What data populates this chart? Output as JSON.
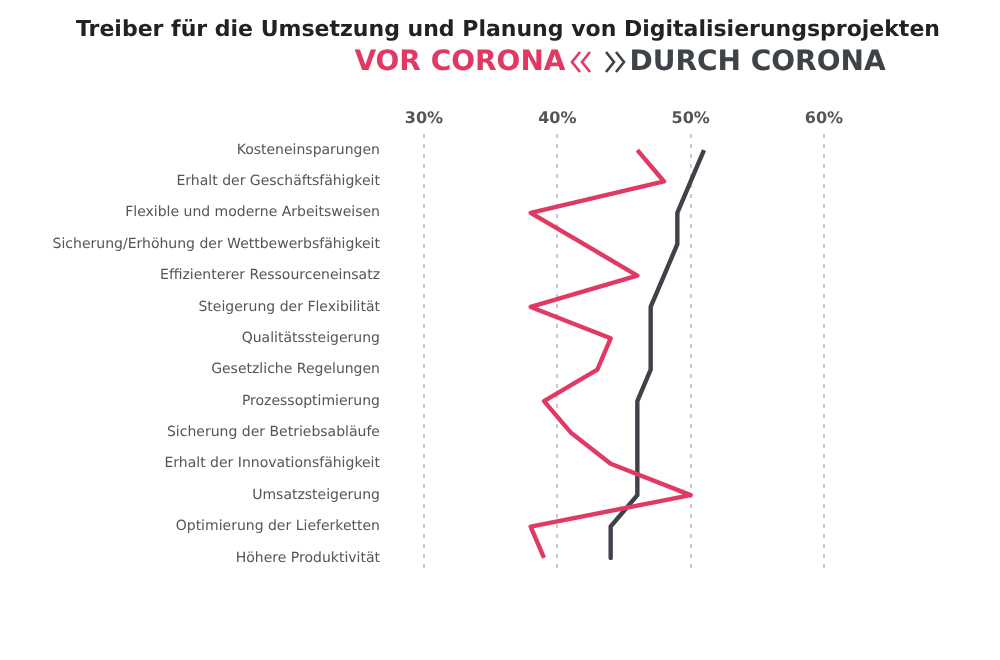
{
  "chart_data": {
    "type": "line",
    "title": "Treiber für die Umsetzung und Planung von Digitalisierungsprojekten",
    "orientation": "horizontal",
    "categories": [
      "Kosteneinsparungen",
      "Erhalt der Geschäftsfähigkeit",
      "Flexible und moderne Arbeitsweisen",
      "Sicherung/Erhöhung der Wettbewerbsfähigkeit",
      "Effizienterer Ressourceneinsatz",
      "Steigerung der Flexibilität",
      "Qualitätssteigerung",
      "Gesetzliche Regelungen",
      "Prozessoptimierung",
      "Sicherung der Betriebsabläufe",
      "Erhalt der Innovationsfähigkeit",
      "Umsatzsteigerung",
      "Optimierung der Lieferketten",
      "Höhere Produktivität"
    ],
    "series": [
      {
        "name": "VOR CORONA",
        "color": "#e03a64",
        "values": [
          46,
          48,
          38,
          42,
          46,
          38,
          44,
          43,
          39,
          41,
          44,
          50,
          38,
          39
        ]
      },
      {
        "name": "DURCH CORONA",
        "color": "#3d4349",
        "values": [
          51,
          50,
          49,
          49,
          48,
          47,
          47,
          47,
          46,
          46,
          46,
          46,
          44,
          44
        ]
      }
    ],
    "xlim": [
      30,
      60
    ],
    "xticks": [
      {
        "value": 30,
        "label": "30%"
      },
      {
        "value": 40,
        "label": "40%"
      },
      {
        "value": 50,
        "label": "50%"
      },
      {
        "value": 60,
        "label": "60%"
      }
    ],
    "grid": "x",
    "legend": "top",
    "marker": "none",
    "line_style": "solid"
  }
}
